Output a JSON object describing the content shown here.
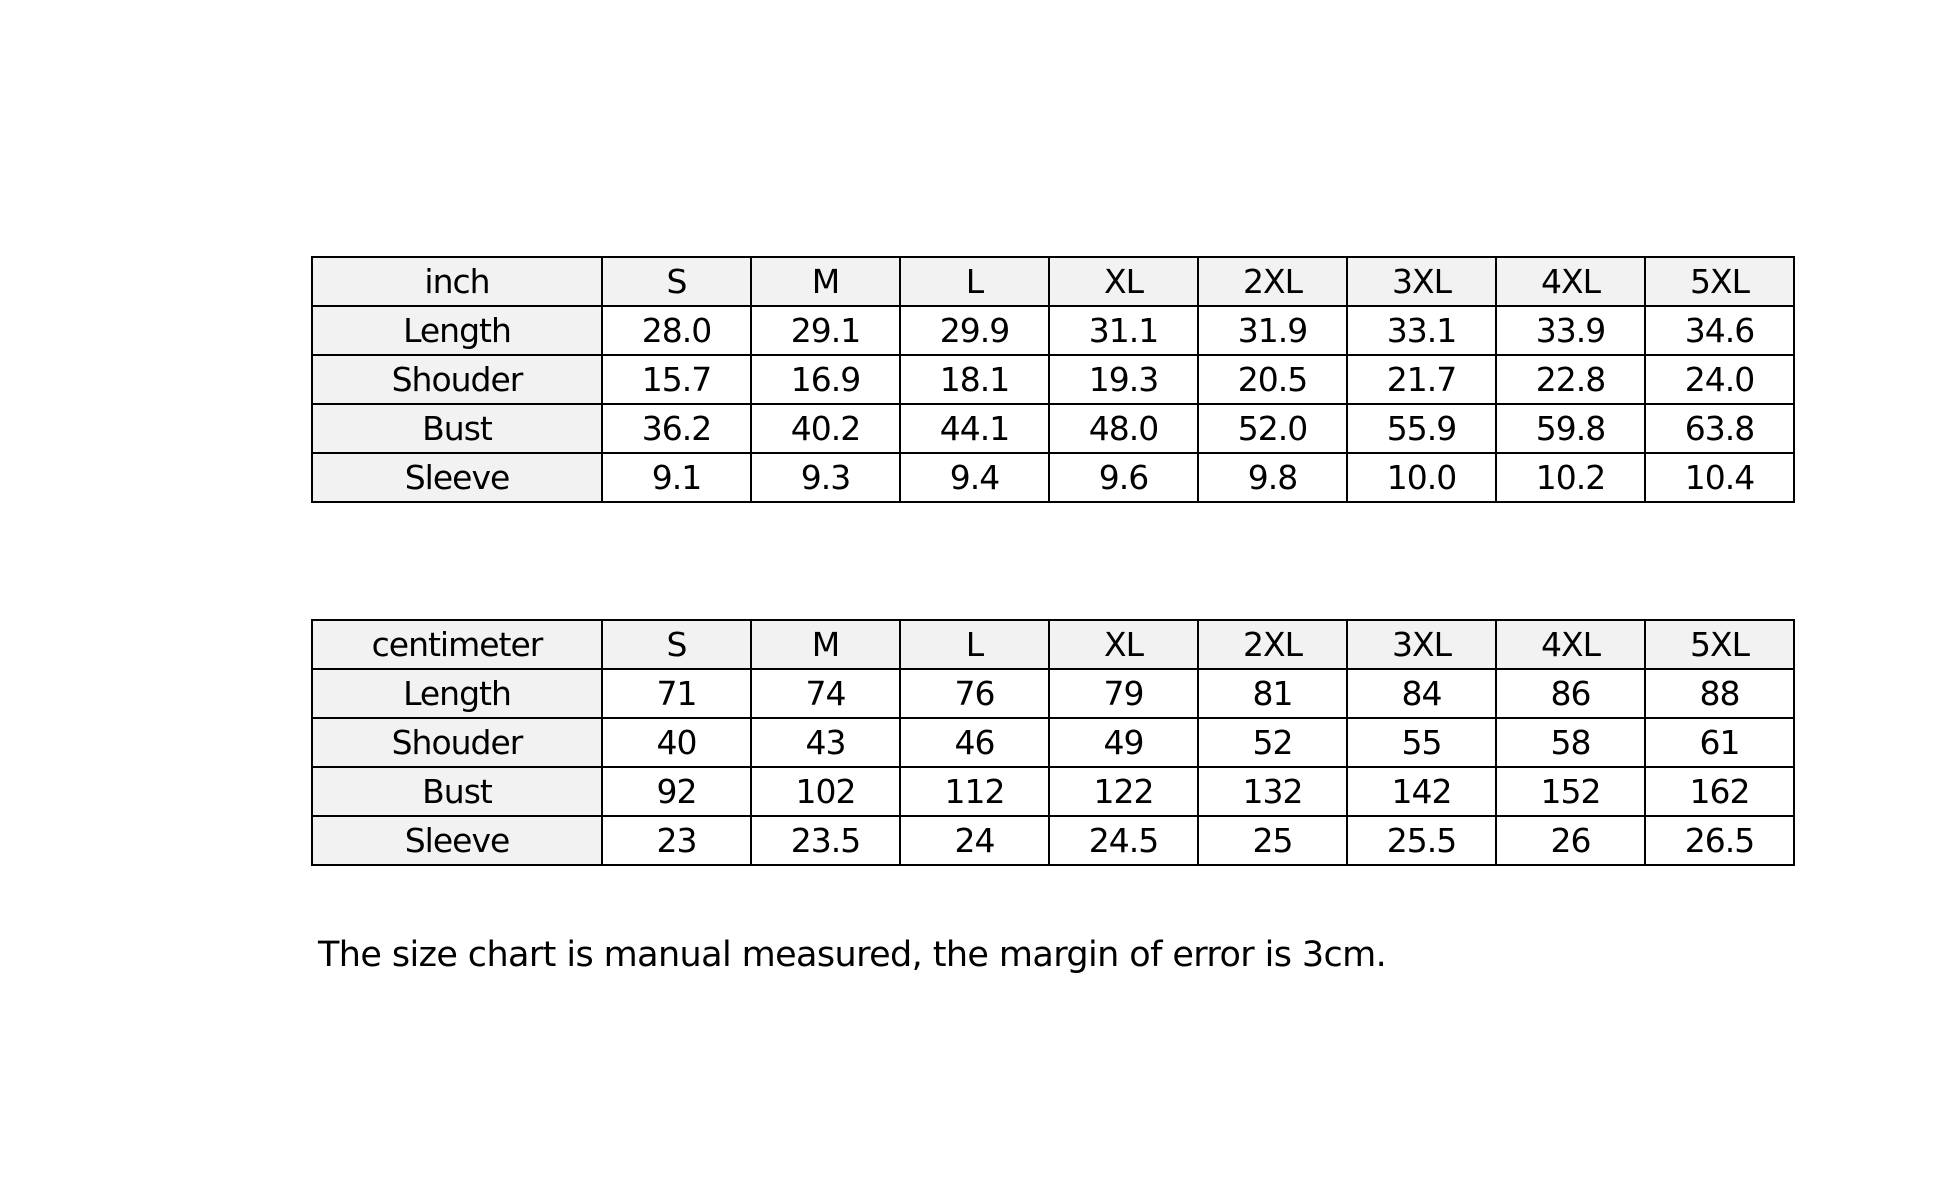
{
  "tables": [
    {
      "unit": "inch",
      "sizes": [
        "S",
        "M",
        "L",
        "XL",
        "2XL",
        "3XL",
        "4XL",
        "5XL"
      ],
      "rows": [
        {
          "label": "Length",
          "values": [
            "28.0",
            "29.1",
            "29.9",
            "31.1",
            "31.9",
            "33.1",
            "33.9",
            "34.6"
          ]
        },
        {
          "label": "Shouder",
          "values": [
            "15.7",
            "16.9",
            "18.1",
            "19.3",
            "20.5",
            "21.7",
            "22.8",
            "24.0"
          ]
        },
        {
          "label": "Bust",
          "values": [
            "36.2",
            "40.2",
            "44.1",
            "48.0",
            "52.0",
            "55.9",
            "59.8",
            "63.8"
          ]
        },
        {
          "label": "Sleeve",
          "values": [
            "9.1",
            "9.3",
            "9.4",
            "9.6",
            "9.8",
            "10.0",
            "10.2",
            "10.4"
          ]
        }
      ]
    },
    {
      "unit": "centimeter",
      "sizes": [
        "S",
        "M",
        "L",
        "XL",
        "2XL",
        "3XL",
        "4XL",
        "5XL"
      ],
      "rows": [
        {
          "label": "Length",
          "values": [
            "71",
            "74",
            "76",
            "79",
            "81",
            "84",
            "86",
            "88"
          ]
        },
        {
          "label": "Shouder",
          "values": [
            "40",
            "43",
            "46",
            "49",
            "52",
            "55",
            "58",
            "61"
          ]
        },
        {
          "label": "Bust",
          "values": [
            "92",
            "102",
            "112",
            "122",
            "132",
            "142",
            "152",
            "162"
          ]
        },
        {
          "label": "Sleeve",
          "values": [
            "23",
            "23.5",
            "24",
            "24.5",
            "25",
            "25.5",
            "26",
            "26.5"
          ]
        }
      ]
    }
  ],
  "note": "The size chart is manual measured, the margin of error is 3cm.",
  "colors": {
    "header_bg": "#f2f2f2",
    "border": "#000000"
  }
}
